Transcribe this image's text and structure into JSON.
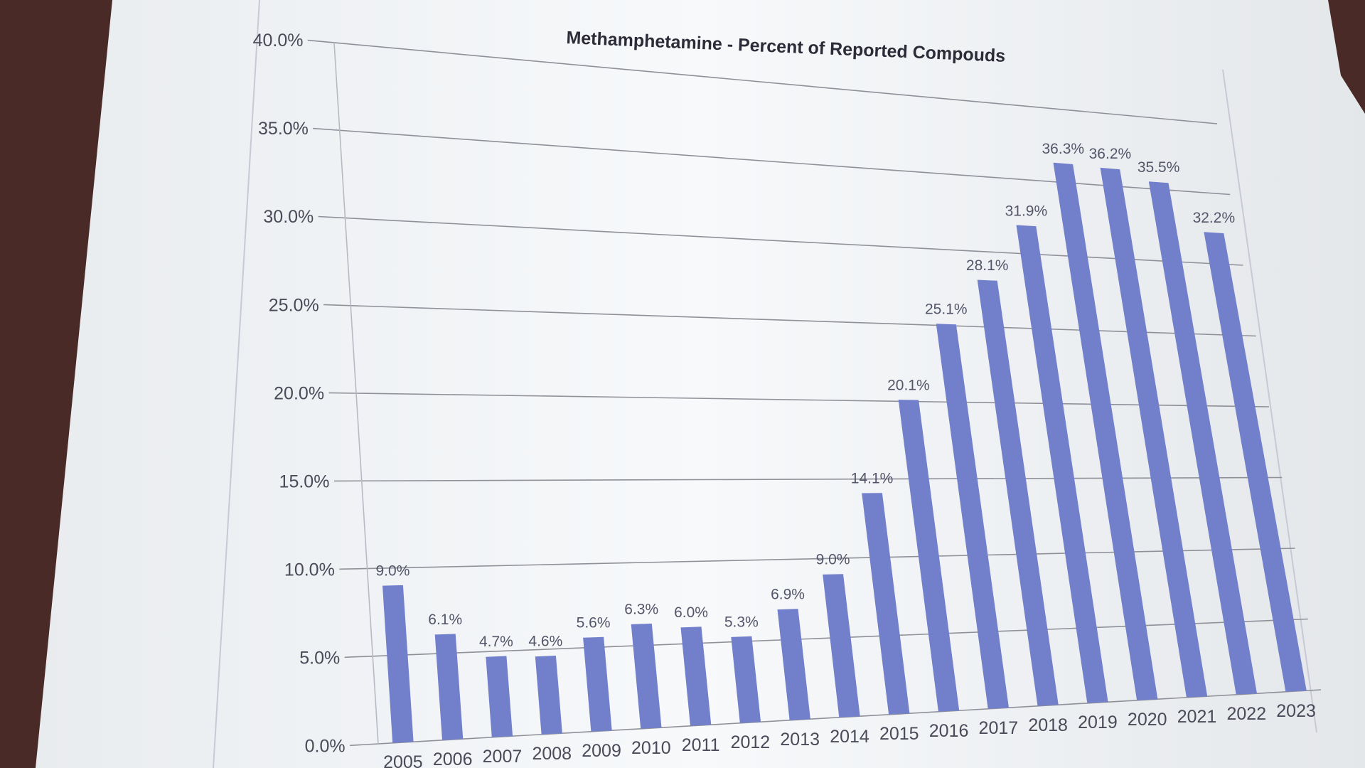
{
  "chart_data": {
    "type": "bar",
    "title": "Methamphetamine - Percent of Reported Compouds",
    "xlabel": "",
    "ylabel": "",
    "categories": [
      "2005",
      "2006",
      "2007",
      "2008",
      "2009",
      "2010",
      "2011",
      "2012",
      "2013",
      "2014",
      "2015",
      "2016",
      "2017",
      "2018",
      "2019",
      "2020",
      "2021",
      "2022",
      "2023"
    ],
    "values": [
      9.0,
      6.1,
      4.7,
      4.6,
      5.6,
      6.3,
      6.0,
      5.3,
      6.9,
      9.0,
      14.1,
      20.1,
      25.1,
      28.1,
      31.9,
      36.3,
      36.2,
      35.5,
      32.2
    ],
    "data_labels": [
      "9.0%",
      "6.1%",
      "4.7%",
      "4.6%",
      "5.6%",
      "6.3%",
      "6.0%",
      "5.3%",
      "6.9%",
      "9.0%",
      "14.1%",
      "20.1%",
      "25.1%",
      "28.1%",
      "31.9%",
      "36.3%",
      "36.2%",
      "35.5%",
      "32.2%"
    ],
    "y_ticks": [
      "0.0%",
      "5.0%",
      "10.0%",
      "15.0%",
      "20.0%",
      "25.0%",
      "30.0%",
      "35.0%",
      "40.0%"
    ],
    "ylim": [
      0,
      40
    ],
    "grid": true,
    "legend": "none",
    "bar_color": "#7280cc"
  }
}
